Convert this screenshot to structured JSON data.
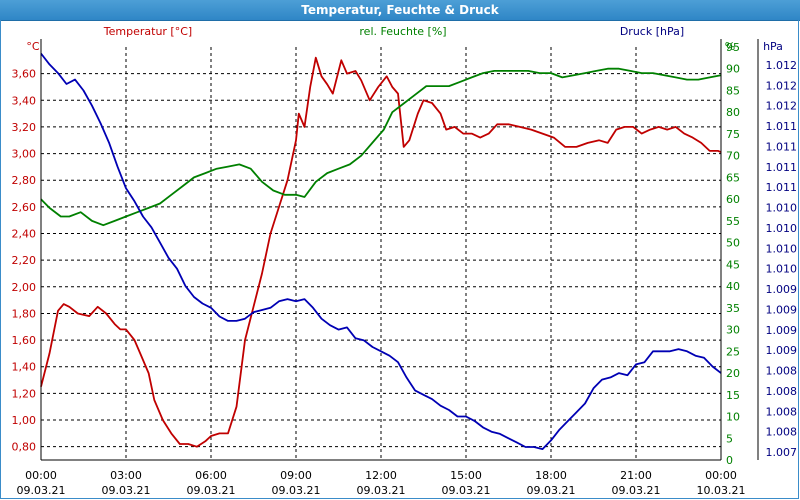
{
  "window": {
    "title": "Temperatur, Feuchte & Druck"
  },
  "colors": {
    "temperature": "#c00000",
    "humidity": "#008000",
    "pressure": "#0000b4",
    "grid": "#000000",
    "axis_temp": "#c00000",
    "axis_hum": "#008000",
    "axis_press": "#000080"
  },
  "chart_data": {
    "type": "line",
    "title": "Temperatur, Feuchte & Druck",
    "grid": true,
    "x_ticks": [
      {
        "hour": 0,
        "time": "00:00",
        "date": "09.03.21"
      },
      {
        "hour": 3,
        "time": "03:00",
        "date": "09.03.21"
      },
      {
        "hour": 6,
        "time": "06:00",
        "date": "09.03.21"
      },
      {
        "hour": 9,
        "time": "09:00",
        "date": "09.03.21"
      },
      {
        "hour": 12,
        "time": "12:00",
        "date": "09.03.21"
      },
      {
        "hour": 15,
        "time": "15:00",
        "date": "09.03.21"
      },
      {
        "hour": 18,
        "time": "18:00",
        "date": "09.03.21"
      },
      {
        "hour": 21,
        "time": "21:00",
        "date": "09.03.21"
      },
      {
        "hour": 24,
        "time": "00:00",
        "date": "10.03.21"
      }
    ],
    "axes": {
      "temperature": {
        "label": "Temperatur [°C]",
        "unit": "°C",
        "ylim": [
          0.7,
          3.8
        ],
        "ticks": [
          "0,80",
          "1,00",
          "1,20",
          "1,40",
          "1,60",
          "1,80",
          "2,00",
          "2,20",
          "2,40",
          "2,60",
          "2,80",
          "3,00",
          "3,20",
          "3,40",
          "3,60"
        ],
        "tick_values": [
          0.8,
          1.0,
          1.2,
          1.4,
          1.6,
          1.8,
          2.0,
          2.2,
          2.4,
          2.6,
          2.8,
          3.0,
          3.2,
          3.4,
          3.6
        ]
      },
      "humidity": {
        "label": "rel. Feuchte [%]",
        "unit": "%",
        "ylim": [
          0,
          95
        ],
        "ticks": [
          "0",
          "5",
          "10",
          "15",
          "20",
          "25",
          "30",
          "35",
          "40",
          "45",
          "50",
          "55",
          "60",
          "65",
          "70",
          "75",
          "80",
          "85",
          "90",
          "95"
        ],
        "tick_values": [
          0,
          5,
          10,
          15,
          20,
          25,
          30,
          35,
          40,
          45,
          50,
          55,
          60,
          65,
          70,
          75,
          80,
          85,
          90,
          95
        ]
      },
      "pressure": {
        "label": "Druck [hPa]",
        "unit": "hPa",
        "ylim": [
          0,
          19
        ],
        "ticks": [
          "1.007",
          "1.008",
          "1.008",
          "1.008",
          "1.008",
          "1.009",
          "1.009",
          "1.009",
          "1.009",
          "1.010",
          "1.010",
          "1.010",
          "1.010",
          "1.011",
          "1.011",
          "1.011",
          "1.011",
          "1.012",
          "1.012",
          "1.012"
        ]
      }
    },
    "series": [
      {
        "name": "Temperatur [°C]",
        "axis": "temperature",
        "x": [
          0,
          0.3,
          0.6,
          0.8,
          1.0,
          1.3,
          1.7,
          2.0,
          2.3,
          2.6,
          2.8,
          3.0,
          3.3,
          3.5,
          3.8,
          4.0,
          4.3,
          4.6,
          4.9,
          5.2,
          5.5,
          5.8,
          6.0,
          6.3,
          6.6,
          6.9,
          7.2,
          7.5,
          7.8,
          8.1,
          8.4,
          8.7,
          9.0,
          9.1,
          9.3,
          9.5,
          9.7,
          9.9,
          10.1,
          10.3,
          10.6,
          10.8,
          11.1,
          11.3,
          11.6,
          11.9,
          12.2,
          12.4,
          12.6,
          12.8,
          13.0,
          13.3,
          13.5,
          13.8,
          14.1,
          14.3,
          14.6,
          14.9,
          15.2,
          15.5,
          15.8,
          16.1,
          16.5,
          16.9,
          17.3,
          17.7,
          18.1,
          18.5,
          18.9,
          19.3,
          19.7,
          20.0,
          20.3,
          20.6,
          20.9,
          21.2,
          21.5,
          21.8,
          22.1,
          22.4,
          22.7,
          23.0,
          23.3,
          23.6,
          23.9,
          24.0
        ],
        "values": [
          1.25,
          1.5,
          1.82,
          1.87,
          1.85,
          1.8,
          1.78,
          1.85,
          1.8,
          1.72,
          1.68,
          1.68,
          1.6,
          1.5,
          1.35,
          1.15,
          1.0,
          0.9,
          0.82,
          0.82,
          0.8,
          0.84,
          0.88,
          0.9,
          0.9,
          1.1,
          1.6,
          1.85,
          2.1,
          2.4,
          2.6,
          2.8,
          3.1,
          3.3,
          3.2,
          3.5,
          3.72,
          3.58,
          3.52,
          3.45,
          3.7,
          3.6,
          3.62,
          3.55,
          3.4,
          3.5,
          3.58,
          3.5,
          3.45,
          3.05,
          3.1,
          3.3,
          3.4,
          3.38,
          3.3,
          3.18,
          3.2,
          3.15,
          3.15,
          3.12,
          3.15,
          3.22,
          3.22,
          3.2,
          3.18,
          3.15,
          3.12,
          3.05,
          3.05,
          3.08,
          3.1,
          3.08,
          3.18,
          3.2,
          3.2,
          3.15,
          3.18,
          3.2,
          3.18,
          3.2,
          3.15,
          3.12,
          3.08,
          3.02,
          3.02,
          3.01
        ]
      },
      {
        "name": "rel. Feuchte [%]",
        "axis": "humidity",
        "x": [
          0,
          0.3,
          0.7,
          1.0,
          1.4,
          1.8,
          2.2,
          2.6,
          3.0,
          3.4,
          3.8,
          4.2,
          4.6,
          5.0,
          5.4,
          5.8,
          6.2,
          6.6,
          7.0,
          7.4,
          7.8,
          8.2,
          8.6,
          9.0,
          9.3,
          9.7,
          10.1,
          10.5,
          10.9,
          11.3,
          11.7,
          12.1,
          12.4,
          12.8,
          13.2,
          13.6,
          14.0,
          14.4,
          14.8,
          15.2,
          15.6,
          16.0,
          16.4,
          16.8,
          17.2,
          17.6,
          18.0,
          18.4,
          18.8,
          19.2,
          19.6,
          20.0,
          20.4,
          20.8,
          21.2,
          21.6,
          22.0,
          22.4,
          22.8,
          23.2,
          23.6,
          24.0
        ],
        "values": [
          60,
          58,
          56,
          56,
          57,
          55,
          54,
          55,
          56,
          57,
          58,
          59,
          61,
          63,
          65,
          66,
          67,
          67.5,
          68,
          67,
          64,
          62,
          61,
          61,
          60.5,
          64,
          66,
          67,
          68,
          70,
          73,
          76,
          80,
          82,
          84,
          86,
          86,
          86,
          87,
          88,
          89,
          89.5,
          89.5,
          89.5,
          89.5,
          89,
          89,
          88,
          88.5,
          89,
          89.5,
          90,
          90,
          89.5,
          89,
          89,
          88.5,
          88,
          87.5,
          87.5,
          88,
          88.5
        ]
      },
      {
        "name": "Druck [hPa]",
        "axis": "pressure",
        "x": [
          0,
          0.3,
          0.6,
          0.9,
          1.2,
          1.5,
          1.8,
          2.1,
          2.4,
          2.7,
          3.0,
          3.3,
          3.6,
          3.9,
          4.2,
          4.5,
          4.8,
          5.1,
          5.4,
          5.7,
          6.0,
          6.3,
          6.6,
          6.9,
          7.2,
          7.5,
          7.8,
          8.1,
          8.4,
          8.7,
          9.0,
          9.3,
          9.6,
          9.9,
          10.2,
          10.5,
          10.8,
          11.1,
          11.4,
          11.7,
          12.0,
          12.3,
          12.6,
          12.9,
          13.2,
          13.5,
          13.8,
          14.1,
          14.4,
          14.7,
          15.0,
          15.3,
          15.6,
          15.9,
          16.2,
          16.5,
          16.8,
          17.1,
          17.4,
          17.7,
          18.0,
          18.3,
          18.6,
          18.9,
          19.2,
          19.5,
          19.8,
          20.1,
          20.4,
          20.7,
          21.0,
          21.3,
          21.6,
          21.9,
          22.2,
          22.5,
          22.8,
          23.1,
          23.4,
          23.7,
          24.0
        ],
        "values": [
          18.7,
          18.2,
          17.8,
          17.3,
          17.5,
          17.0,
          16.3,
          15.5,
          14.6,
          13.5,
          12.5,
          11.9,
          11.2,
          10.7,
          10.0,
          9.3,
          8.8,
          8.0,
          7.5,
          7.2,
          7.0,
          6.6,
          6.4,
          6.4,
          6.5,
          6.8,
          6.9,
          7.0,
          7.3,
          7.4,
          7.3,
          7.4,
          7.0,
          6.5,
          6.2,
          6.0,
          6.1,
          5.6,
          5.5,
          5.2,
          5.0,
          4.8,
          4.5,
          3.8,
          3.2,
          3.0,
          2.8,
          2.5,
          2.3,
          2.0,
          2.0,
          1.8,
          1.5,
          1.3,
          1.2,
          1.0,
          0.8,
          0.6,
          0.6,
          0.5,
          0.9,
          1.4,
          1.8,
          2.2,
          2.6,
          3.3,
          3.7,
          3.8,
          4.0,
          3.9,
          4.4,
          4.5,
          5.0,
          5.0,
          5.0,
          5.1,
          5.0,
          4.8,
          4.7,
          4.3,
          4.0
        ]
      }
    ]
  }
}
